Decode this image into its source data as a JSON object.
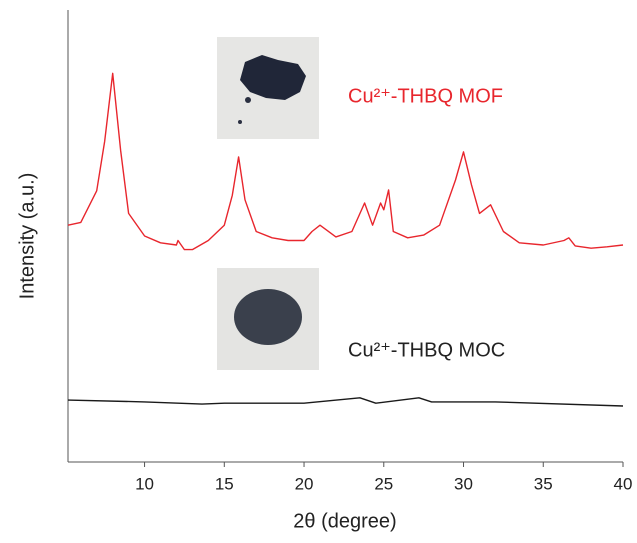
{
  "chart_data": {
    "type": "line",
    "x_label": "2θ (degree)",
    "y_label": "Intensity (a.u.)",
    "xlim": [
      5.2,
      40
    ],
    "xticks": [
      10,
      15,
      20,
      25,
      30,
      35,
      40
    ],
    "ylim": [
      0,
      100
    ],
    "series": [
      {
        "name": "Cu²⁺-THBQ MOF",
        "color": "#e8262d",
        "x": [
          5.2,
          6,
          7,
          7.5,
          8.0,
          8.5,
          9,
          10,
          11,
          12,
          12.1,
          12.5,
          13,
          14,
          15,
          15.5,
          15.9,
          16.3,
          17,
          18,
          19,
          20,
          20.5,
          21,
          22,
          23,
          23.8,
          24.3,
          24.8,
          25.0,
          25.3,
          25.6,
          26.5,
          27.5,
          28.5,
          29.5,
          30.0,
          30.5,
          31,
          31.7,
          32.5,
          33.5,
          35,
          36.3,
          36.6,
          37,
          38,
          39,
          40
        ],
        "values": [
          52.4,
          53,
          60,
          71,
          86,
          69,
          55,
          50,
          48.5,
          48,
          49,
          47,
          47,
          49,
          52.4,
          59,
          67.5,
          58,
          51,
          49.6,
          49,
          49,
          51,
          52.4,
          49.8,
          51,
          57.3,
          52.4,
          57.3,
          55.8,
          60.2,
          51,
          49.6,
          50.2,
          52.4,
          62.4,
          68.6,
          61.3,
          55,
          56.9,
          51,
          48.5,
          48,
          49,
          49.6,
          47.8,
          47.3,
          47.6,
          48
        ]
      },
      {
        "name": "Cu²⁺-THBQ MOC",
        "color": "#1a1a1a",
        "x": [
          5.2,
          10,
          13.6,
          15,
          20,
          23.5,
          24.5,
          27.2,
          28,
          32,
          40
        ],
        "values": [
          13.7,
          13.3,
          12.8,
          13,
          13,
          14.2,
          13,
          14.2,
          13.3,
          13.3,
          12.4
        ]
      }
    ]
  }
}
